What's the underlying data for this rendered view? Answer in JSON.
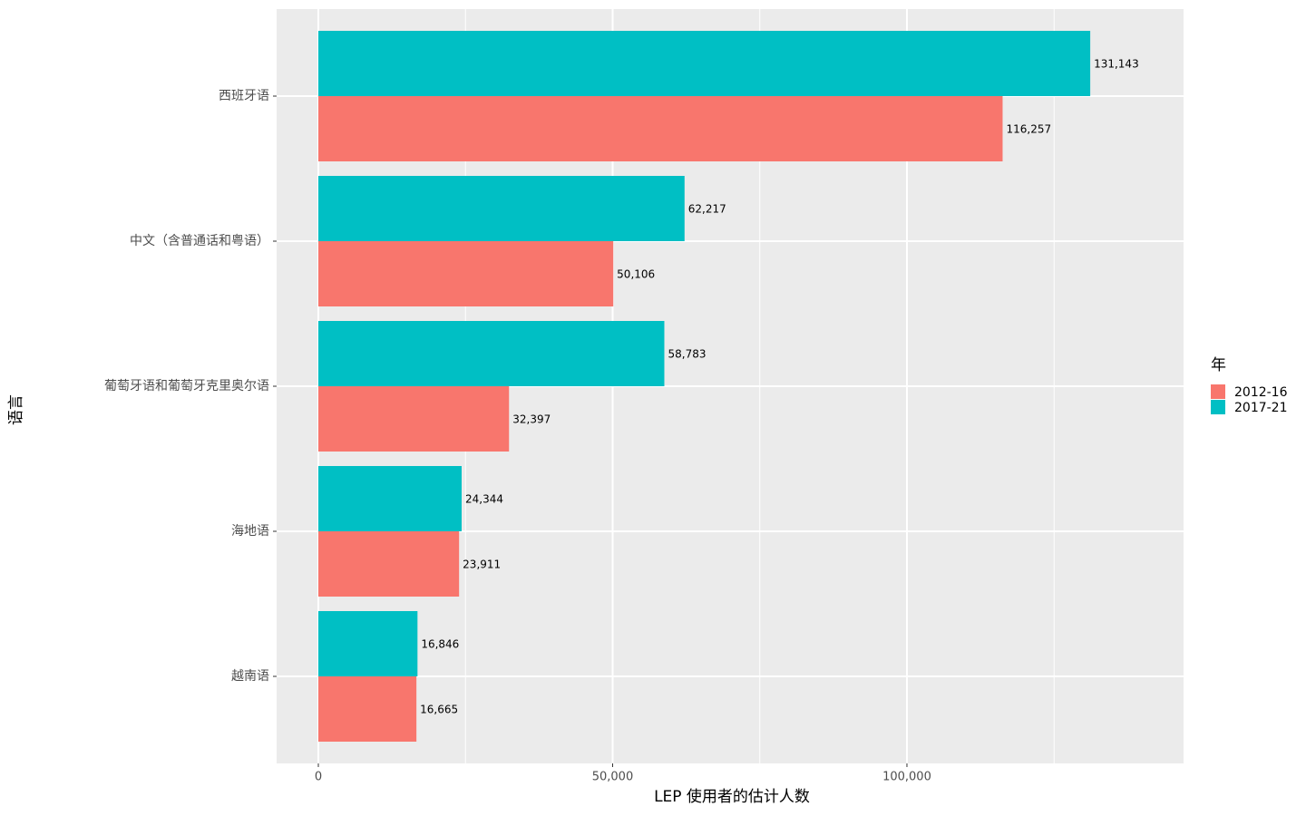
{
  "chart_data": {
    "type": "bar",
    "orientation": "horizontal",
    "categories": [
      "西班牙语",
      "中文（含普通话和粤语）",
      "葡萄牙语和葡萄牙克里奥尔语",
      "海地语",
      "越南语"
    ],
    "series": [
      {
        "name": "2012-16",
        "color": "#F8766D",
        "values": [
          116257,
          50106,
          32397,
          23911,
          16665
        ],
        "value_labels": [
          "116,257",
          "50,106",
          "32,397",
          "23,911",
          "16,665"
        ]
      },
      {
        "name": "2017-21",
        "color": "#00BFC4",
        "values": [
          131143,
          62217,
          58783,
          24344,
          16846
        ],
        "value_labels": [
          "131,143",
          "62,217",
          "58,783",
          "24,344",
          "16,846"
        ]
      }
    ],
    "xlabel": "LEP 使用者的估计人数",
    "ylabel": "语言",
    "legend_title": "年",
    "xlim": [
      -7088,
      147000
    ],
    "xticks": [
      0,
      {
        "value": 50000,
        "label": "50,000"
      },
      {
        "value": 100000,
        "label": "100,000"
      }
    ],
    "minor_xticks": [
      25000,
      75000,
      125000
    ],
    "grid": true,
    "legend": "right"
  }
}
